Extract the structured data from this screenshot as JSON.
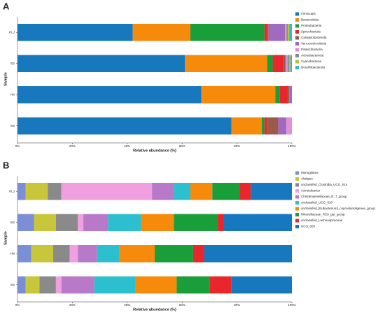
{
  "chart_data": [
    {
      "type": "stacked_barh",
      "title": "A",
      "xlabel": "Relative abundance (%)",
      "ylabel": "Sample",
      "categories": [
        "HLJ",
        "SD",
        "HN",
        "SS"
      ],
      "xlim": [
        0,
        100
      ],
      "xticks": [
        {
          "value": 0,
          "label": "0%"
        },
        {
          "value": 20,
          "label": "20%"
        },
        {
          "value": 40,
          "label": "40%"
        },
        {
          "value": 60,
          "label": "60%"
        },
        {
          "value": 80,
          "label": "80%"
        },
        {
          "value": 100,
          "label": "100%"
        }
      ],
      "series": [
        {
          "name": "Firmicutes",
          "color": "#1878be",
          "values": [
            42,
            61,
            67,
            78
          ]
        },
        {
          "name": "Bacteroidota",
          "color": "#f58a0b",
          "values": [
            21,
            30,
            27,
            11
          ]
        },
        {
          "name": "Proteobacteria",
          "color": "#1a9e3a",
          "values": [
            27,
            2,
            1.5,
            1
          ]
        },
        {
          "name": "Spirochaetota",
          "color": "#e8262b",
          "values": [
            1,
            4,
            3,
            1
          ]
        },
        {
          "name": "Campylobacterota",
          "color": "#9b5a4a",
          "values": [
            0.5,
            0.5,
            0.5,
            4
          ]
        },
        {
          "name": "Verrucomicrobiota",
          "color": "#a06ac0",
          "values": [
            6,
            0.5,
            1,
            3
          ]
        },
        {
          "name": "Patescibacteria",
          "color": "#e48fd4",
          "values": [
            0.5,
            0.5,
            0,
            2
          ]
        },
        {
          "name": "Actinobacteriota",
          "color": "#8a8a8a",
          "values": [
            0.5,
            0.5,
            0,
            0
          ]
        },
        {
          "name": "Cyanobacteria",
          "color": "#b5c234",
          "values": [
            0.5,
            0.5,
            0,
            0
          ]
        },
        {
          "name": "Desulfobacterota",
          "color": "#3cb4d6",
          "values": [
            1,
            0.5,
            0,
            0
          ]
        }
      ]
    },
    {
      "type": "stacked_barh",
      "title": "B",
      "xlabel": "Relative abundance (%)",
      "ylabel": "Sample",
      "categories": [
        "HLJ",
        "SD",
        "HN",
        "SS"
      ],
      "xlim": [
        0,
        100
      ],
      "xticks": [
        {
          "value": 0,
          "label": "0%"
        },
        {
          "value": 20,
          "label": "20%"
        },
        {
          "value": 40,
          "label": "40%"
        },
        {
          "value": 60,
          "label": "60%"
        },
        {
          "value": 80,
          "label": "80%"
        },
        {
          "value": 100,
          "label": "100%"
        }
      ],
      "series": [
        {
          "name": "Monoglobus",
          "color": "#7b8fd6",
          "values": [
            3,
            6,
            5,
            3
          ]
        },
        {
          "name": "Alistipes",
          "color": "#c8c63a",
          "values": [
            8,
            8,
            8,
            5
          ]
        },
        {
          "name": "unclassifed_Clostridia_UCG_014",
          "color": "#8a8a8a",
          "values": [
            5,
            8,
            6,
            6
          ]
        },
        {
          "name": "Acinetobacter",
          "color": "#f0a0e0",
          "values": [
            33,
            2,
            3,
            2
          ]
        },
        {
          "name": "Christensenellaceae_R_7_group",
          "color": "#b879c8",
          "values": [
            8,
            9,
            7,
            12
          ]
        },
        {
          "name": "unclassifed_UCG_010",
          "color": "#2bbfd0",
          "values": [
            6,
            12,
            8,
            15
          ]
        },
        {
          "name": "unclassifed_[Eubacterium]_coprostanoligenes_group",
          "color": "#f58a0b",
          "values": [
            8,
            12,
            13,
            15
          ]
        },
        {
          "name": "Rikenellaceae_RC9_gut_group",
          "color": "#1a9e3a",
          "values": [
            10,
            16,
            14,
            12
          ]
        },
        {
          "name": "unclassifed_Lachnospiraceae",
          "color": "#e8262b",
          "values": [
            4,
            2,
            4,
            8
          ]
        },
        {
          "name": "UCG_005",
          "color": "#1878be",
          "values": [
            15,
            25,
            32,
            22
          ]
        }
      ]
    }
  ]
}
